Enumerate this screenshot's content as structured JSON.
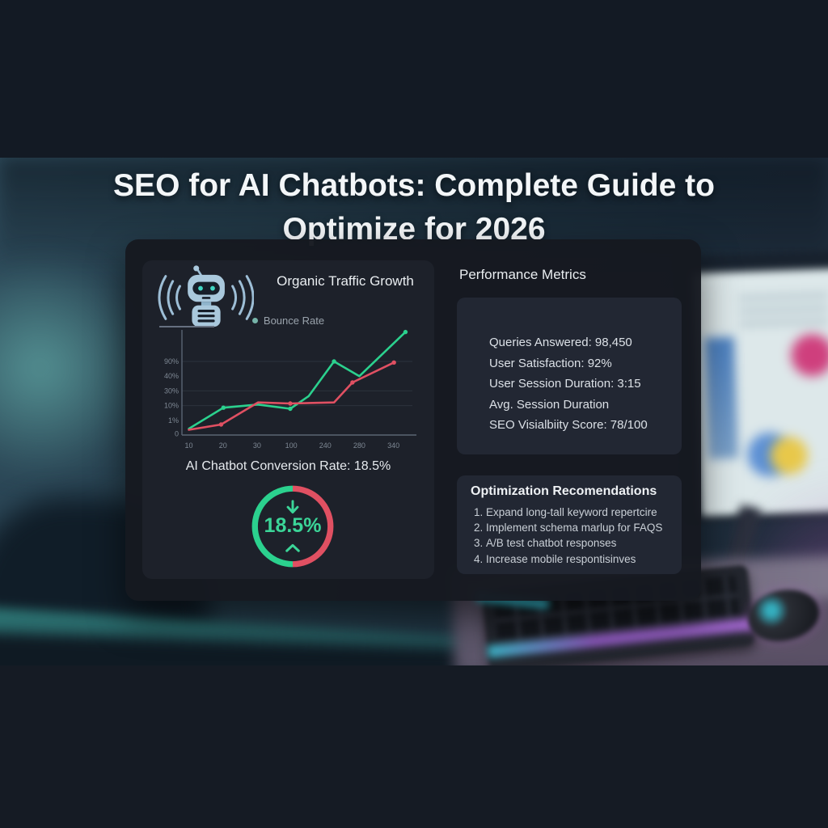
{
  "header": {
    "title_line1": "SEO for AI Chatbots: Complete Guide to",
    "title_line2": "Optimize for 2026"
  },
  "dashboard": {
    "traffic_panel": {
      "title": "Organic Traffic Growth",
      "legend_label": "Bounce Rate",
      "conversion_text": "AI Chatbot Conversion Rate: 18.5%",
      "gauge_value": "18.5%"
    },
    "metrics_panel": {
      "title": "Performance Metrics",
      "items": [
        "Queries Answered: 98,450",
        "User Satisfaction: 92%",
        "User Session Duration: 3:15",
        "Avg. Session Duration",
        "SEO Visialbiity Score: 78/100"
      ]
    },
    "recommendations_panel": {
      "title": "Optimization Recomendations",
      "items": [
        "Expand long-tall keyword repertcire",
        "Implement schema marlup for FAQS",
        "A/B test chatbot responses",
        "Increase mobile respontisinves"
      ]
    }
  },
  "chart_data": {
    "type": "line",
    "title": "Organic Traffic Growth",
    "legend": [
      "Bounce Rate"
    ],
    "legend_position": "top",
    "grid": true,
    "y_tick_labels": [
      "90%",
      "40%",
      "30%",
      "10%",
      "1%",
      "0"
    ],
    "x_tick_labels": [
      "10",
      "20",
      "30",
      "100",
      "240",
      "280",
      "340"
    ],
    "series": [
      {
        "name": "Bounce Rate",
        "color": "#2bd18e",
        "points_norm_xy": [
          [
            0.03,
            0.06
          ],
          [
            0.18,
            0.26
          ],
          [
            0.33,
            0.29
          ],
          [
            0.47,
            0.25
          ],
          [
            0.55,
            0.37
          ],
          [
            0.66,
            0.7
          ],
          [
            0.77,
            0.56
          ],
          [
            0.97,
            0.98
          ]
        ]
      },
      {
        "name": "Red series (unlabeled)",
        "color": "#e05062",
        "points_norm_xy": [
          [
            0.03,
            0.05
          ],
          [
            0.17,
            0.1
          ],
          [
            0.33,
            0.31
          ],
          [
            0.47,
            0.3
          ],
          [
            0.66,
            0.31
          ],
          [
            0.74,
            0.5
          ],
          [
            0.92,
            0.69
          ]
        ]
      }
    ]
  },
  "colors": {
    "green": "#2bd18e",
    "red": "#e05062",
    "legend_dot": "#76b4a9",
    "gauge_text": "#3bd598"
  }
}
